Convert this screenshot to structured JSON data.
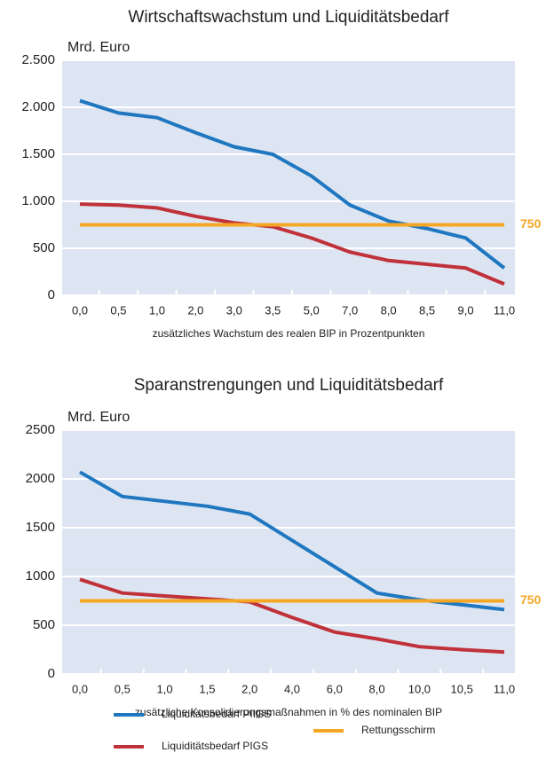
{
  "chart_data": [
    {
      "type": "line",
      "title": "Wirtschaftswachstum und Liquiditätsbedarf",
      "y_label": "Mrd. Euro",
      "x_label": "zusätzliches Wachstum des realen BIP in Prozentpunkten",
      "categories": [
        "0,0",
        "0,5",
        "1,0",
        "2,0",
        "3,0",
        "3,5",
        "5,0",
        "7,0",
        "8,0",
        "8,5",
        "9,0",
        "11,0"
      ],
      "series": [
        {
          "color": "#1f77c0",
          "values": [
            2070,
            1940,
            1890,
            1730,
            1580,
            1500,
            1270,
            960,
            790,
            710,
            610,
            290
          ]
        },
        {
          "color": "#c0313a",
          "values": [
            970,
            960,
            930,
            840,
            770,
            730,
            610,
            460,
            370,
            330,
            290,
            120
          ]
        },
        {
          "color": "#f5a623",
          "values": [
            750,
            750,
            750,
            750,
            750,
            750,
            750,
            750,
            750,
            750,
            750,
            750
          ]
        }
      ],
      "ylim": [
        0,
        2500
      ],
      "yticks": [
        0,
        {
          "value": 500,
          "label": "500"
        },
        {
          "value": 1000,
          "label": "1.000"
        },
        {
          "value": 1500,
          "label": "1.500"
        },
        {
          "value": 2000,
          "label": "2.000"
        },
        {
          "value": 2500,
          "label": "2.500"
        }
      ],
      "grid": true
    },
    {
      "type": "line",
      "title": "Sparanstrengungen und Liquiditätsbedarf",
      "y_label": "Mrd. Euro",
      "x_label": "zusätzliche Konsolidierungsmaßnahmen in % des nominalen BIP",
      "categories": [
        "0,0",
        "0,5",
        "1,0",
        "1,5",
        "2,0",
        "4,0",
        "6,0",
        "8,0",
        "10,0",
        "10,5",
        "11,0"
      ],
      "series": [
        {
          "name": "Liquiditätsbedarf PIIGS",
          "color": "#1f77c0",
          "values": [
            2070,
            1820,
            1770,
            1720,
            1640,
            1370,
            1100,
            830,
            760,
            710,
            660
          ]
        },
        {
          "name": "Liquiditätsbedarf PIGS",
          "color": "#c0313a",
          "values": [
            970,
            830,
            800,
            770,
            740,
            580,
            430,
            360,
            280,
            250,
            225
          ]
        },
        {
          "name": "Rettungsschirm",
          "color": "#f5a623",
          "values": [
            750,
            750,
            750,
            750,
            750,
            750,
            750,
            750,
            750,
            750,
            750
          ]
        }
      ],
      "ylim": [
        0,
        2500
      ],
      "yticks": [
        0,
        500,
        1000,
        1500,
        2000,
        2500
      ],
      "grid": true
    }
  ]
}
